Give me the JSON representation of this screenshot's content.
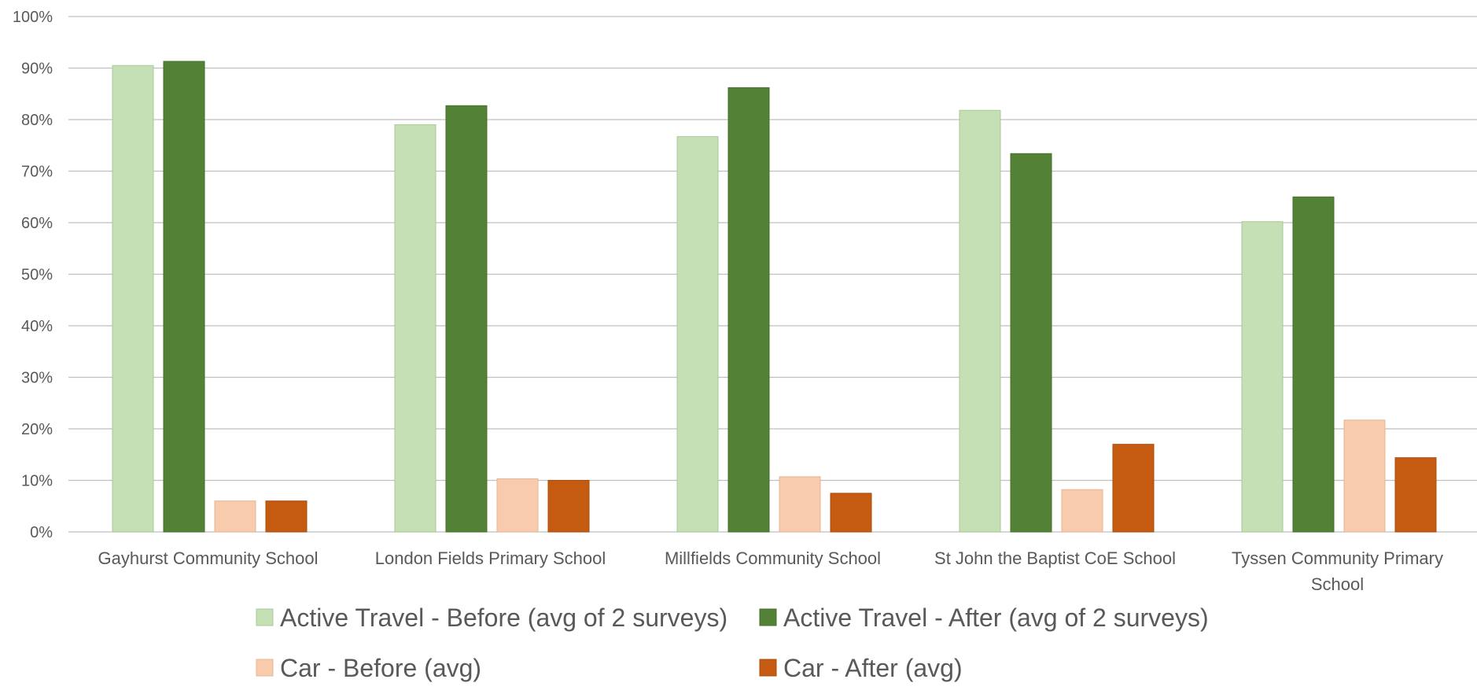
{
  "chart_data": {
    "type": "bar",
    "categories": [
      [
        "Gayhurst Community School"
      ],
      [
        "London Fields Primary School"
      ],
      [
        "Millfields Community School"
      ],
      [
        "St John the Baptist CoE School"
      ],
      [
        "Tyssen Community Primary",
        "School"
      ]
    ],
    "series": [
      {
        "name": "Active Travel - Before (avg of 2 surveys)",
        "color": "#c5e0b4",
        "border": "#a9c99a",
        "values": [
          90.5,
          79,
          76.7,
          81.8,
          60.2
        ]
      },
      {
        "name": "Active Travel - After (avg of 2 surveys)",
        "color": "#538135",
        "border": "#476f2d",
        "values": [
          91.3,
          82.7,
          86.2,
          73.4,
          65
        ]
      },
      {
        "name": "Car - Before (avg)",
        "color": "#f8cbad",
        "border": "#e6b597",
        "values": [
          6,
          10.3,
          10.7,
          8.2,
          21.7
        ]
      },
      {
        "name": "Car - After (avg)",
        "color": "#c55a11",
        "border": "#a94d0e",
        "values": [
          6,
          10,
          7.5,
          17,
          14.4
        ]
      }
    ],
    "ylim": [
      0,
      100
    ],
    "yticks": [
      "0%",
      "10%",
      "20%",
      "30%",
      "40%",
      "50%",
      "60%",
      "70%",
      "80%",
      "90%",
      "100%"
    ],
    "grid": true,
    "legend_position": "bottom",
    "title": "",
    "xlabel": "",
    "ylabel": ""
  }
}
